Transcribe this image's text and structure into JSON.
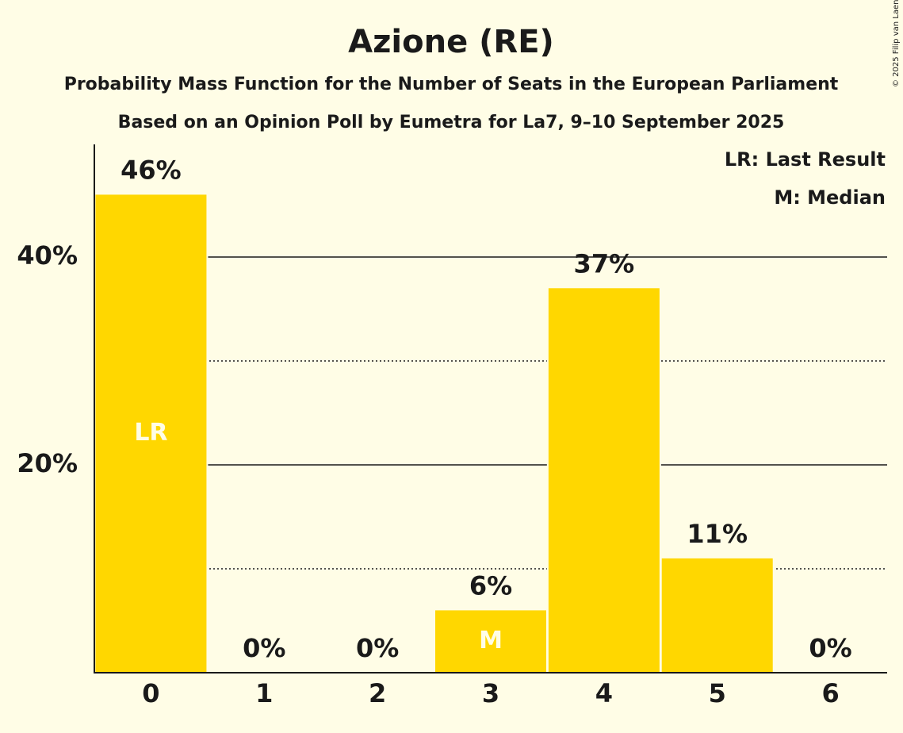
{
  "copyright": "© 2025 Filip van Laenen",
  "chart_data": {
    "type": "bar",
    "title": "Azione (RE)",
    "subtitle1": "Probability Mass Function for the Number of Seats in the European Parliament",
    "subtitle2": "Based on an Opinion Poll by Eumetra for La7, 9–10 September 2025",
    "categories": [
      "0",
      "1",
      "2",
      "3",
      "4",
      "5",
      "6"
    ],
    "values": [
      46,
      0,
      0,
      6,
      37,
      11,
      0
    ],
    "value_labels": [
      "46%",
      "0%",
      "0%",
      "6%",
      "37%",
      "11%",
      "0%"
    ],
    "ytick_values": [
      20,
      40
    ],
    "ytick_labels": [
      "20%",
      "40%"
    ],
    "ylim": [
      0,
      50
    ],
    "grid_solid": [
      20,
      40
    ],
    "grid_dotted": [
      10,
      30
    ],
    "bar_markers": [
      {
        "index": 0,
        "label": "LR"
      },
      {
        "index": 3,
        "label": "M"
      }
    ],
    "legend": [
      "LR: Last Result",
      "M: Median"
    ],
    "legend_position": "top-right",
    "colors": {
      "bar": "#FFD700",
      "background": "#FFFDE6",
      "text": "#1a1a1a",
      "marker_text": "#FFFDE6"
    }
  }
}
